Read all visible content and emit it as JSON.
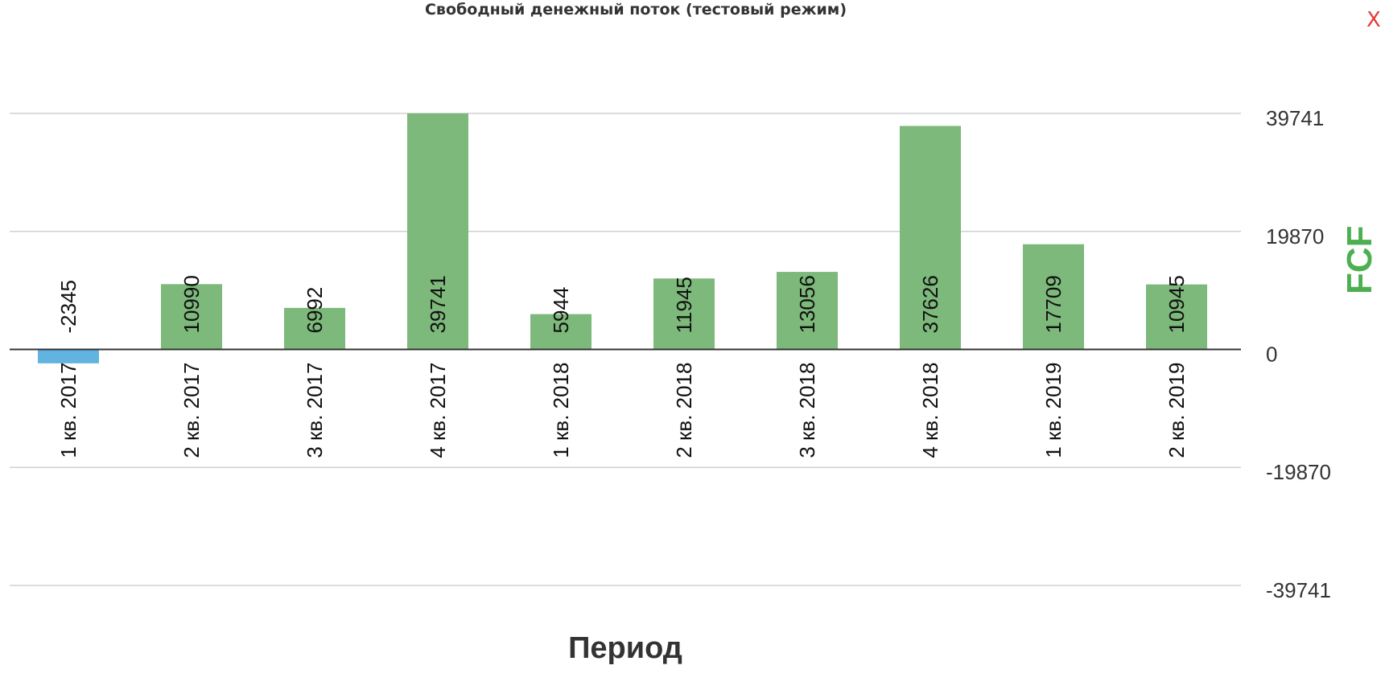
{
  "close_label": "X",
  "colors": {
    "positive_bar": "#7cb97a",
    "negative_bar": "#63b3e0",
    "y_title": "#4caf50",
    "close": "#e53935",
    "grid": "#d0d0d0",
    "zero_line": "#333333"
  },
  "chart_data": {
    "type": "bar",
    "title": "Свободный денежный поток (тестовый режим)",
    "xlabel": "Период",
    "ylabel": "FCF",
    "categories": [
      "1 кв. 2017",
      "2 кв. 2017",
      "3 кв. 2017",
      "4 кв. 2017",
      "1 кв. 2018",
      "2 кв. 2018",
      "3 кв. 2018",
      "4 кв. 2018",
      "1 кв. 2019",
      "2 кв. 2019"
    ],
    "values": [
      -2345,
      10990,
      6992,
      39741,
      5944,
      11945,
      13056,
      37626,
      17709,
      10945
    ],
    "data_labels": [
      "-2345",
      "10990",
      "6992",
      "39741",
      "5944",
      "11945",
      "13056",
      "37626",
      "17709",
      "10945"
    ],
    "ylim": [
      -39741,
      39741
    ],
    "yticks": [
      39741,
      19870,
      0,
      -19870,
      -39741
    ],
    "ytick_labels": [
      "39741",
      "19870",
      "0",
      "-19870",
      "-39741"
    ],
    "y_axis_position": "right",
    "grid": true,
    "legend": false
  }
}
